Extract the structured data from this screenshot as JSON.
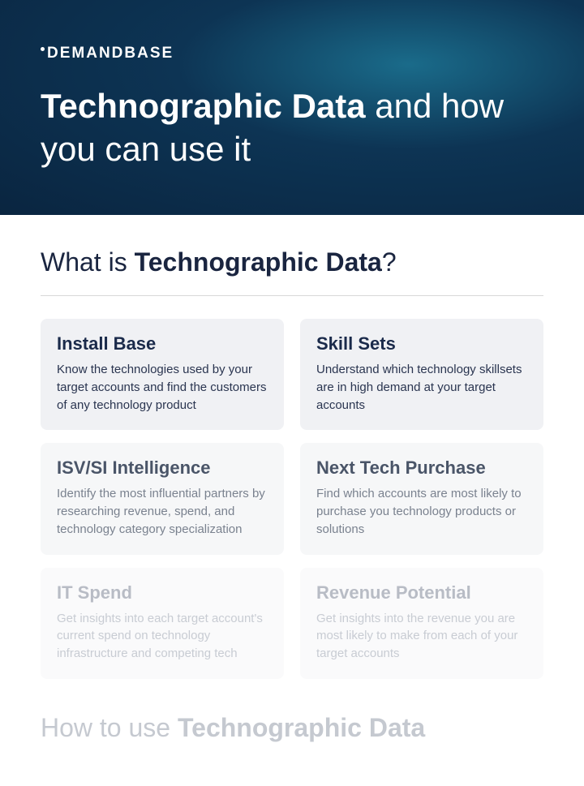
{
  "header": {
    "logo_text": "DEMANDBASE",
    "title_bold": "Technographic Data",
    "title_rest": " and how you can use it"
  },
  "section1": {
    "title_prefix": "What is ",
    "title_bold": "Technographic Data",
    "title_suffix": "?"
  },
  "colors": {
    "card_bg": "#f2f3f5",
    "title_dark": "#1a2a4a",
    "body_dark": "#2a3550",
    "title_mid": "#4a5568",
    "body_mid": "#6b7280",
    "title_light": "#9aa1ad",
    "body_light": "#b0b5bf",
    "section2_title": "#c5c9d0"
  },
  "cards": [
    {
      "title": "Install Base",
      "body": "Know the technologies used by your target accounts and find the customers of any technology product",
      "title_color": "#1a2a4a",
      "body_color": "#2a3550",
      "bg": "#f0f1f4"
    },
    {
      "title": "Skill Sets",
      "body": "Understand which technology skillsets are in high demand at your target accounts",
      "title_color": "#1a2a4a",
      "body_color": "#2a3550",
      "bg": "#f0f1f4"
    },
    {
      "title": "ISV/SI Intelligence",
      "body": "Identify the most influential partners by researching revenue, spend, and technology category specialization",
      "title_color": "#4a5568",
      "body_color": "#7a828f",
      "bg": "#f6f7f8"
    },
    {
      "title": "Next Tech Purchase",
      "body": "Find which accounts are most likely to purchase you technology products or solutions",
      "title_color": "#4a5568",
      "body_color": "#7a828f",
      "bg": "#f6f7f8"
    },
    {
      "title": "IT Spend",
      "body": "Get insights into each target account's current spend on technology infrastructure and competing tech",
      "title_color": "#b8bcc5",
      "body_color": "#c8ccd3",
      "bg": "#fafafb"
    },
    {
      "title": "Revenue Potential",
      "body": "Get insights into the revenue you are most likely to make from each of your target accounts",
      "title_color": "#b8bcc5",
      "body_color": "#c8ccd3",
      "bg": "#fafafb"
    }
  ],
  "section2": {
    "title_prefix": "How to use ",
    "title_bold": "Technographic Data"
  }
}
